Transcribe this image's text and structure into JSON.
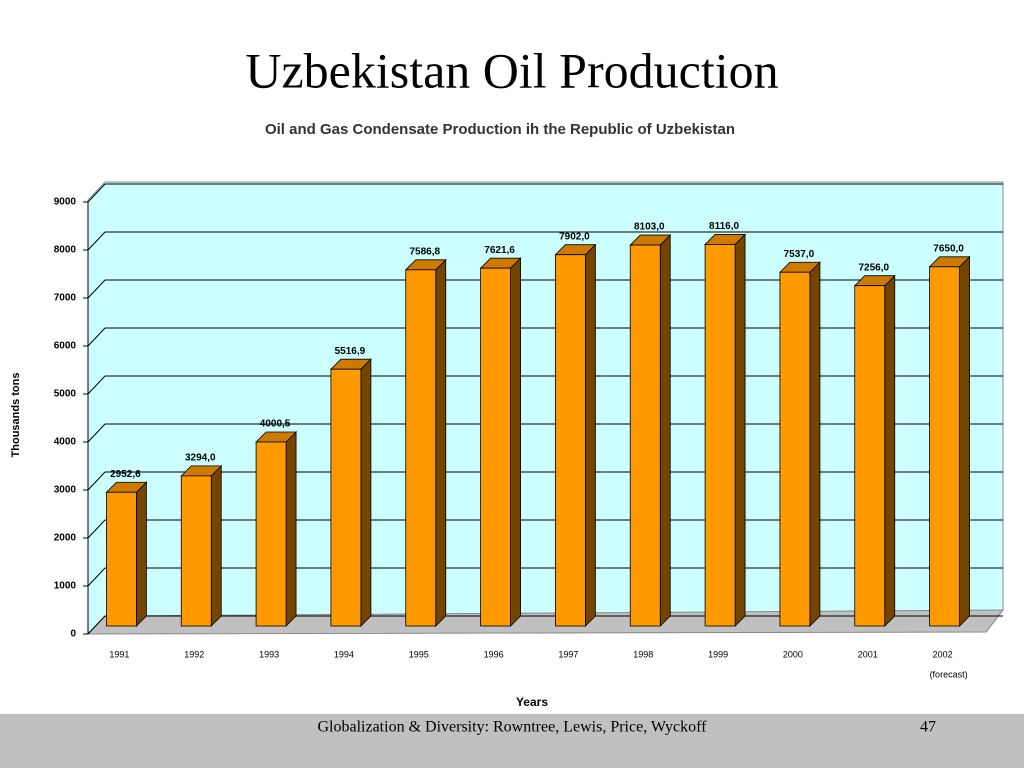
{
  "title": "Uzbekistan Oil Production",
  "chart_data": {
    "type": "bar3d",
    "title": "Oil and Gas Condensate Production ih the Republic of Uzbekistan",
    "x_label": "Years",
    "y_label": "Thousands tons",
    "categories": [
      "1991",
      "1992",
      "1993",
      "1994",
      "1995",
      "1996",
      "1997",
      "1998",
      "1999",
      "2000",
      "2001",
      "2002"
    ],
    "category_note": "(forecast)",
    "values": [
      2952.6,
      3294.0,
      4000.5,
      5516.9,
      7586.8,
      7621.6,
      7902.0,
      8103.0,
      8116.0,
      7537.0,
      7256.0,
      7650.0
    ],
    "value_labels": [
      "2952,6",
      "3294,0",
      "4000,5",
      "5516,9",
      "7586,8",
      "7621,6",
      "7902,0",
      "8103,0",
      "8116,0",
      "7537,0",
      "7256,0",
      "7650,0"
    ],
    "color": "#ff9900",
    "ylim": [
      0,
      9000
    ],
    "yticks": [
      0,
      1000,
      2000,
      3000,
      4000,
      5000,
      6000,
      7000,
      8000,
      9000
    ],
    "grid": true
  },
  "footer": {
    "text": "Globalization & Diversity: Rowntree, Lewis, Price, Wyckoff",
    "page": "47"
  }
}
